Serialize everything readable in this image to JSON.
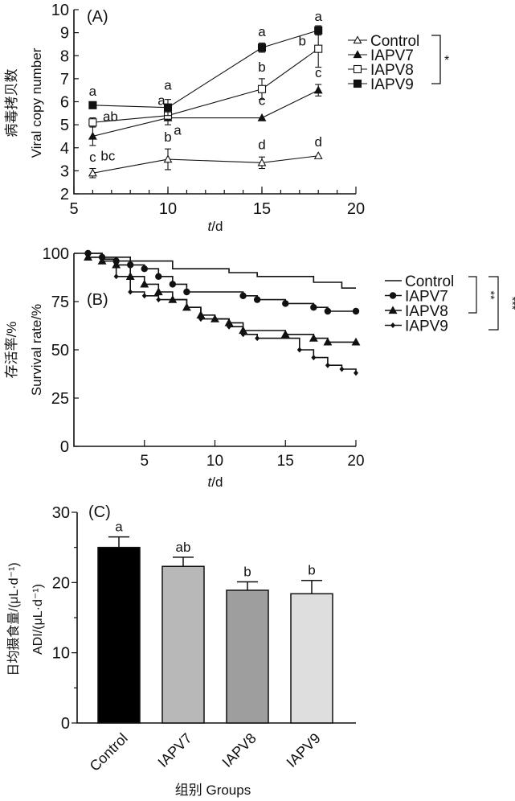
{
  "chart_data": [
    {
      "type": "line",
      "panel_label": "(A)",
      "title": "",
      "xlabel": "t/d",
      "ylabel_cn": "病毒拷贝数",
      "ylabel": "Viral copy number",
      "xlim": [
        5,
        20
      ],
      "ylim": [
        2,
        10
      ],
      "x_ticks": [
        5,
        10,
        15,
        20
      ],
      "y_ticks": [
        2,
        3,
        4,
        5,
        6,
        7,
        8,
        9,
        10
      ],
      "x": [
        6,
        10,
        15,
        18
      ],
      "series": [
        {
          "name": "Control",
          "marker": "open-triangle",
          "values": [
            2.9,
            3.5,
            3.35,
            3.65
          ],
          "errors": [
            0.2,
            0.45,
            0.25,
            0.05
          ],
          "letters": [
            "c",
            "b",
            "d",
            "d"
          ]
        },
        {
          "name": "IAPV7",
          "marker": "filled-triangle",
          "values": [
            4.5,
            5.3,
            5.3,
            6.5
          ],
          "errors": [
            0.4,
            0.3,
            0.05,
            0.25
          ],
          "letters": [
            "bc",
            "a",
            "c",
            "c"
          ]
        },
        {
          "name": "IAPV8",
          "marker": "open-square",
          "values": [
            5.1,
            5.4,
            6.55,
            8.3
          ],
          "errors": [
            0.2,
            0.2,
            0.45,
            0.8
          ],
          "letters": [
            "ab",
            "a",
            "b",
            "b"
          ]
        },
        {
          "name": "IAPV9",
          "marker": "filled-square",
          "values": [
            5.85,
            5.75,
            8.35,
            9.1
          ],
          "errors": [
            0.05,
            0.35,
            0.2,
            0.2
          ],
          "letters": [
            "a",
            "a",
            "a",
            "a"
          ]
        }
      ],
      "legend_position": "right",
      "significance": "*"
    },
    {
      "type": "line",
      "subtype": "kaplan-meier-step",
      "panel_label": "(B)",
      "xlabel": "t/d",
      "ylabel_cn": "存活率/%",
      "ylabel": "Survival rate/%",
      "xlim": [
        0,
        20
      ],
      "ylim": [
        0,
        100
      ],
      "x_ticks": [
        5,
        10,
        15,
        20
      ],
      "y_ticks": [
        0,
        25,
        50,
        75,
        100
      ],
      "series": [
        {
          "name": "Control",
          "marker": "none",
          "steps": [
            [
              0,
              100
            ],
            [
              2,
              98
            ],
            [
              4,
              96
            ],
            [
              7,
              92
            ],
            [
              11,
              90
            ],
            [
              13,
              88
            ],
            [
              17,
              85
            ],
            [
              19,
              82
            ],
            [
              20,
              82
            ]
          ]
        },
        {
          "name": "IAPV7",
          "marker": "circle",
          "steps": [
            [
              1,
              100
            ],
            [
              2,
              98
            ],
            [
              3,
              96
            ],
            [
              4,
              94
            ],
            [
              5,
              92
            ],
            [
              6,
              88
            ],
            [
              7,
              84
            ],
            [
              8,
              80
            ],
            [
              12,
              78
            ],
            [
              13,
              76
            ],
            [
              15,
              74
            ],
            [
              17,
              72
            ],
            [
              18,
              70
            ],
            [
              20,
              70
            ]
          ]
        },
        {
          "name": "IAPV8",
          "marker": "triangle",
          "steps": [
            [
              1,
              98
            ],
            [
              2,
              96
            ],
            [
              3,
              94
            ],
            [
              4,
              88
            ],
            [
              5,
              84
            ],
            [
              6,
              80
            ],
            [
              7,
              76
            ],
            [
              8,
              72
            ],
            [
              9,
              68
            ],
            [
              10,
              66
            ],
            [
              11,
              64
            ],
            [
              12,
              60
            ],
            [
              15,
              58
            ],
            [
              17,
              56
            ],
            [
              18,
              54
            ],
            [
              20,
              54
            ]
          ]
        },
        {
          "name": "IAPV9",
          "marker": "diamond",
          "steps": [
            [
              1,
              98
            ],
            [
              2,
              97
            ],
            [
              3,
              88
            ],
            [
              4,
              80
            ],
            [
              5,
              78
            ],
            [
              6,
              76
            ],
            [
              8,
              72
            ],
            [
              9,
              66
            ],
            [
              11,
              62
            ],
            [
              12,
              58
            ],
            [
              13,
              56
            ],
            [
              16,
              50
            ],
            [
              17,
              46
            ],
            [
              18,
              42
            ],
            [
              19,
              40
            ],
            [
              20,
              38
            ]
          ]
        }
      ],
      "legend_position": "right",
      "significance": [
        {
          "pair": [
            "Control",
            "IAPV8"
          ],
          "label": "**"
        },
        {
          "pair": [
            "Control",
            "IAPV9"
          ],
          "label": "***"
        }
      ]
    },
    {
      "type": "bar",
      "panel_label": "(C)",
      "xlabel": "组别 Groups",
      "ylabel_cn": "日均摄食量/(μL·d⁻¹)",
      "ylabel": "ADI/(μL·d⁻¹)",
      "ylim": [
        0,
        30
      ],
      "y_ticks": [
        0,
        10,
        20,
        30
      ],
      "categories": [
        "Control",
        "IAPV7",
        "IAPV8",
        "IAPV9"
      ],
      "values": [
        25.0,
        22.3,
        18.9,
        18.4
      ],
      "errors": [
        1.5,
        1.3,
        1.2,
        1.9
      ],
      "letters": [
        "a",
        "ab",
        "b",
        "b"
      ],
      "colors": [
        "#000000",
        "#b8b8b8",
        "#9e9e9e",
        "#dedede"
      ]
    }
  ]
}
